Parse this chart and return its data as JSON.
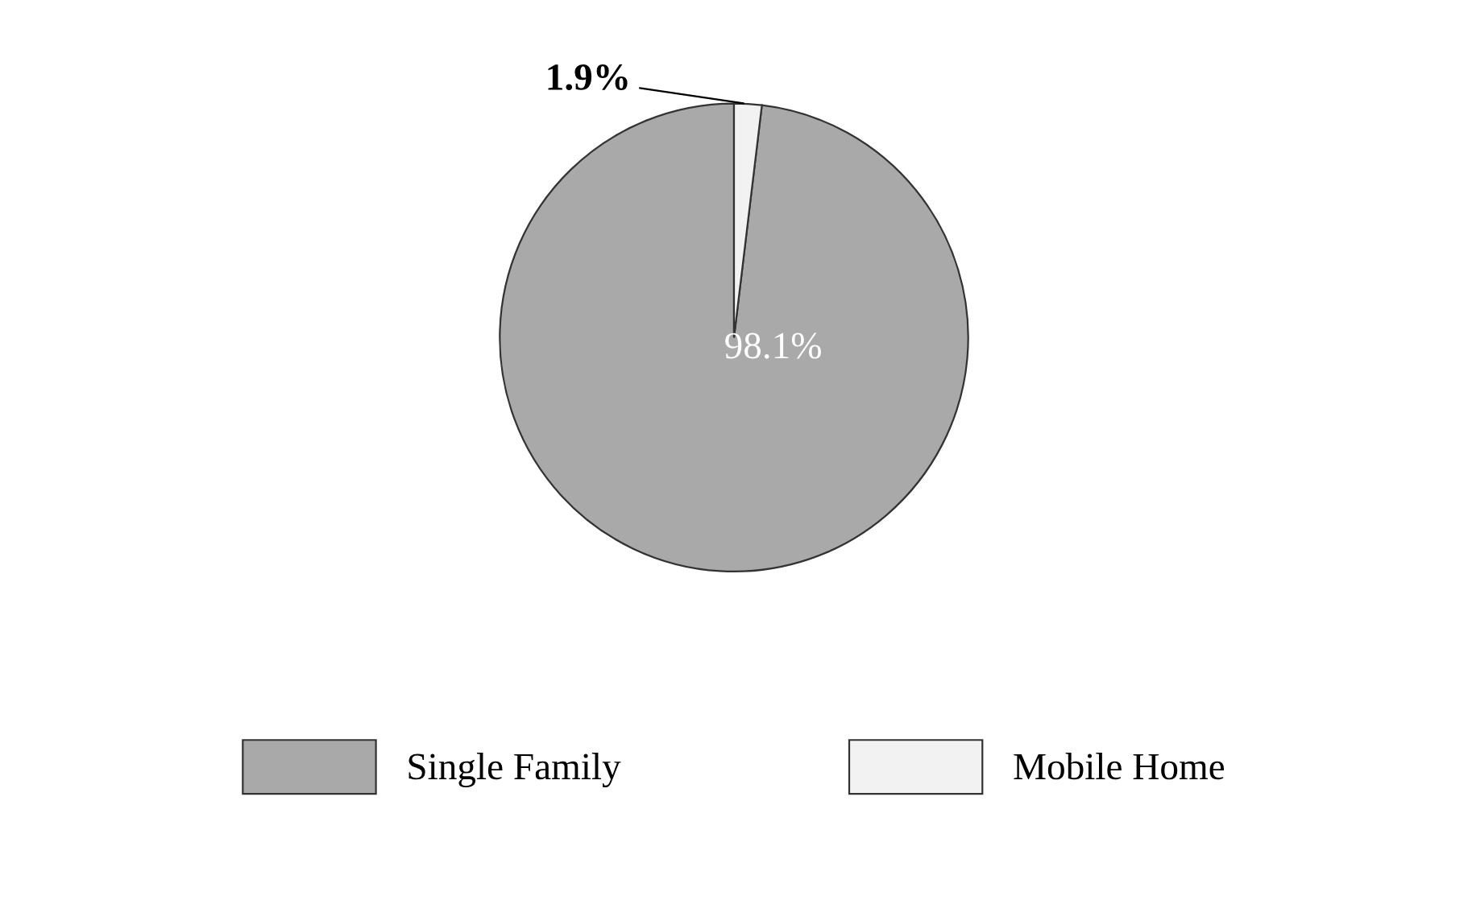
{
  "chart_data": {
    "type": "pie",
    "categories": [
      "Single Family",
      "Mobile Home"
    ],
    "values": [
      98.1,
      1.9
    ],
    "colors": [
      "#a9a9a9",
      "#f2f2f2"
    ],
    "value_labels": [
      "98.1%",
      "1.9%"
    ],
    "legend": "bottom"
  }
}
